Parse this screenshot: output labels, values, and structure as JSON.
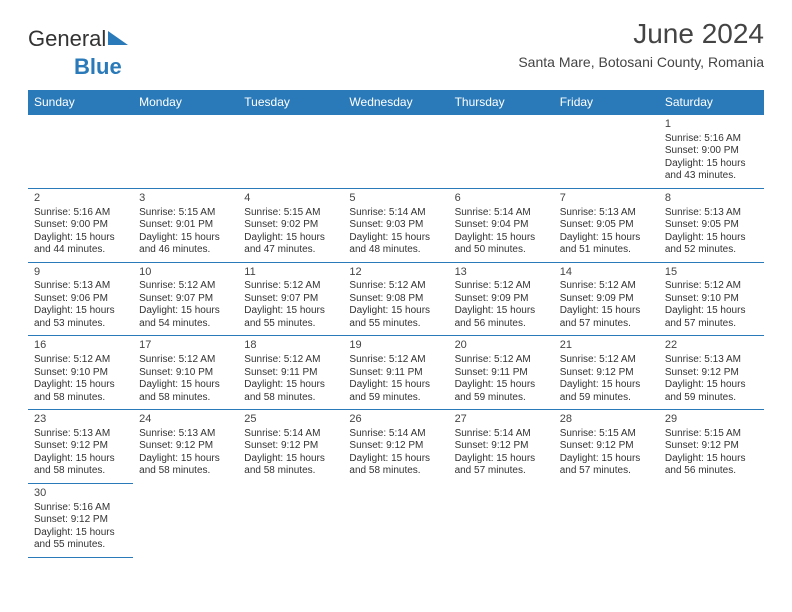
{
  "logo": {
    "part1": "General",
    "part2": "Blue"
  },
  "title": "June 2024",
  "location": "Santa Mare, Botosani County, Romania",
  "colors": {
    "accent": "#2a7ab9",
    "text": "#333333",
    "bg": "#ffffff"
  },
  "weekdays": [
    "Sunday",
    "Monday",
    "Tuesday",
    "Wednesday",
    "Thursday",
    "Friday",
    "Saturday"
  ],
  "days": {
    "1": {
      "sr": "5:16 AM",
      "ss": "9:00 PM",
      "dl": "15 hours and 43 minutes."
    },
    "2": {
      "sr": "5:16 AM",
      "ss": "9:00 PM",
      "dl": "15 hours and 44 minutes."
    },
    "3": {
      "sr": "5:15 AM",
      "ss": "9:01 PM",
      "dl": "15 hours and 46 minutes."
    },
    "4": {
      "sr": "5:15 AM",
      "ss": "9:02 PM",
      "dl": "15 hours and 47 minutes."
    },
    "5": {
      "sr": "5:14 AM",
      "ss": "9:03 PM",
      "dl": "15 hours and 48 minutes."
    },
    "6": {
      "sr": "5:14 AM",
      "ss": "9:04 PM",
      "dl": "15 hours and 50 minutes."
    },
    "7": {
      "sr": "5:13 AM",
      "ss": "9:05 PM",
      "dl": "15 hours and 51 minutes."
    },
    "8": {
      "sr": "5:13 AM",
      "ss": "9:05 PM",
      "dl": "15 hours and 52 minutes."
    },
    "9": {
      "sr": "5:13 AM",
      "ss": "9:06 PM",
      "dl": "15 hours and 53 minutes."
    },
    "10": {
      "sr": "5:12 AM",
      "ss": "9:07 PM",
      "dl": "15 hours and 54 minutes."
    },
    "11": {
      "sr": "5:12 AM",
      "ss": "9:07 PM",
      "dl": "15 hours and 55 minutes."
    },
    "12": {
      "sr": "5:12 AM",
      "ss": "9:08 PM",
      "dl": "15 hours and 55 minutes."
    },
    "13": {
      "sr": "5:12 AM",
      "ss": "9:09 PM",
      "dl": "15 hours and 56 minutes."
    },
    "14": {
      "sr": "5:12 AM",
      "ss": "9:09 PM",
      "dl": "15 hours and 57 minutes."
    },
    "15": {
      "sr": "5:12 AM",
      "ss": "9:10 PM",
      "dl": "15 hours and 57 minutes."
    },
    "16": {
      "sr": "5:12 AM",
      "ss": "9:10 PM",
      "dl": "15 hours and 58 minutes."
    },
    "17": {
      "sr": "5:12 AM",
      "ss": "9:10 PM",
      "dl": "15 hours and 58 minutes."
    },
    "18": {
      "sr": "5:12 AM",
      "ss": "9:11 PM",
      "dl": "15 hours and 58 minutes."
    },
    "19": {
      "sr": "5:12 AM",
      "ss": "9:11 PM",
      "dl": "15 hours and 59 minutes."
    },
    "20": {
      "sr": "5:12 AM",
      "ss": "9:11 PM",
      "dl": "15 hours and 59 minutes."
    },
    "21": {
      "sr": "5:12 AM",
      "ss": "9:12 PM",
      "dl": "15 hours and 59 minutes."
    },
    "22": {
      "sr": "5:13 AM",
      "ss": "9:12 PM",
      "dl": "15 hours and 59 minutes."
    },
    "23": {
      "sr": "5:13 AM",
      "ss": "9:12 PM",
      "dl": "15 hours and 58 minutes."
    },
    "24": {
      "sr": "5:13 AM",
      "ss": "9:12 PM",
      "dl": "15 hours and 58 minutes."
    },
    "25": {
      "sr": "5:14 AM",
      "ss": "9:12 PM",
      "dl": "15 hours and 58 minutes."
    },
    "26": {
      "sr": "5:14 AM",
      "ss": "9:12 PM",
      "dl": "15 hours and 58 minutes."
    },
    "27": {
      "sr": "5:14 AM",
      "ss": "9:12 PM",
      "dl": "15 hours and 57 minutes."
    },
    "28": {
      "sr": "5:15 AM",
      "ss": "9:12 PM",
      "dl": "15 hours and 57 minutes."
    },
    "29": {
      "sr": "5:15 AM",
      "ss": "9:12 PM",
      "dl": "15 hours and 56 minutes."
    },
    "30": {
      "sr": "5:16 AM",
      "ss": "9:12 PM",
      "dl": "15 hours and 55 minutes."
    }
  },
  "labels": {
    "sunrise": "Sunrise: ",
    "sunset": "Sunset: ",
    "daylight": "Daylight: "
  },
  "layout": {
    "first_weekday_index": 6,
    "days_in_month": 30,
    "columns": 7
  }
}
